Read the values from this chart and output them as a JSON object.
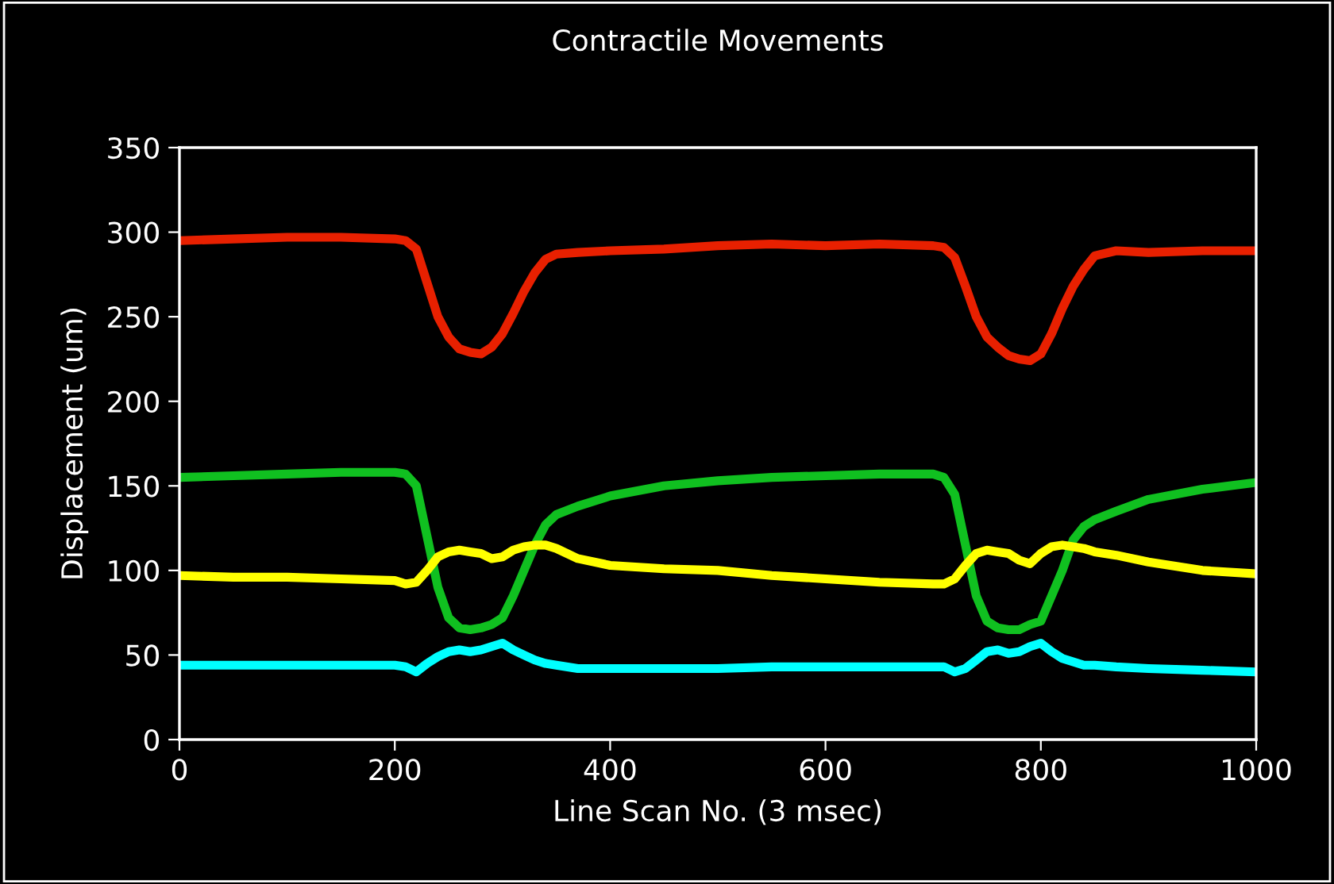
{
  "chart_data": {
    "type": "line",
    "title": "Contractile Movements",
    "xlabel": "Line Scan No. (3 msec)",
    "ylabel": "Displacement (um)",
    "x": [
      0,
      50,
      100,
      150,
      200,
      210,
      220,
      230,
      240,
      250,
      260,
      270,
      280,
      290,
      300,
      310,
      320,
      330,
      340,
      350,
      370,
      400,
      450,
      500,
      550,
      600,
      650,
      700,
      710,
      720,
      730,
      740,
      750,
      760,
      770,
      780,
      790,
      800,
      810,
      820,
      830,
      840,
      850,
      870,
      900,
      950,
      1000
    ],
    "series": [
      {
        "color": "#e82000",
        "values": [
          295,
          296,
          297,
          297,
          296,
          295,
          290,
          270,
          250,
          238,
          231,
          229,
          228,
          232,
          240,
          252,
          265,
          276,
          284,
          287,
          288,
          289,
          290,
          292,
          293,
          292,
          293,
          292,
          291,
          285,
          268,
          250,
          238,
          232,
          227,
          225,
          224,
          228,
          240,
          255,
          268,
          278,
          286,
          289,
          288,
          289,
          289
        ]
      },
      {
        "color": "#10c020",
        "values": [
          155,
          156,
          157,
          158,
          158,
          157,
          150,
          120,
          90,
          72,
          66,
          65,
          66,
          68,
          72,
          85,
          100,
          115,
          127,
          133,
          138,
          144,
          150,
          153,
          155,
          156,
          157,
          157,
          155,
          145,
          115,
          85,
          70,
          66,
          65,
          65,
          68,
          70,
          85,
          100,
          118,
          126,
          130,
          135,
          142,
          148,
          152
        ]
      },
      {
        "color": "#ffff00",
        "values": [
          97,
          96,
          96,
          95,
          94,
          92,
          93,
          100,
          108,
          111,
          112,
          111,
          110,
          107,
          108,
          112,
          114,
          115,
          115,
          113,
          107,
          103,
          101,
          100,
          97,
          95,
          93,
          92,
          92,
          95,
          103,
          110,
          112,
          111,
          110,
          106,
          104,
          110,
          114,
          115,
          114,
          113,
          111,
          109,
          105,
          100,
          98
        ]
      },
      {
        "color": "#00ffff",
        "values": [
          44,
          44,
          44,
          44,
          44,
          43,
          40,
          45,
          49,
          52,
          53,
          52,
          53,
          55,
          57,
          53,
          50,
          47,
          45,
          44,
          42,
          42,
          42,
          42,
          43,
          43,
          43,
          43,
          43,
          40,
          42,
          47,
          52,
          53,
          51,
          52,
          55,
          57,
          52,
          48,
          46,
          44,
          44,
          43,
          42,
          41,
          40
        ]
      }
    ],
    "xlim": [
      0,
      1000
    ],
    "ylim": [
      0,
      350
    ],
    "xticks": [
      0,
      200,
      400,
      600,
      800,
      1000
    ],
    "yticks": [
      0,
      50,
      100,
      150,
      200,
      250,
      300,
      350
    ],
    "grid": false,
    "legend": false,
    "marker": "none",
    "line_style": "solid"
  }
}
